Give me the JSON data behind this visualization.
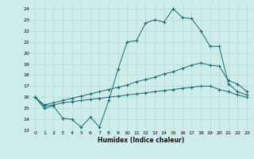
{
  "xlabel": "Humidex (Indice chaleur)",
  "bg_color": "#ceecea",
  "line_color": "#1a6b6b",
  "grid_color": "#b5d8d5",
  "xlim": [
    -0.5,
    23.5
  ],
  "ylim": [
    13,
    24.5
  ],
  "yticks": [
    13,
    14,
    15,
    16,
    17,
    18,
    19,
    20,
    21,
    22,
    23,
    24
  ],
  "xticks": [
    0,
    1,
    2,
    3,
    4,
    5,
    6,
    7,
    8,
    9,
    10,
    11,
    12,
    13,
    14,
    15,
    16,
    17,
    18,
    19,
    20,
    21,
    22,
    23
  ],
  "line1_x": [
    0,
    1,
    2,
    3,
    4,
    5,
    6,
    7,
    8,
    9,
    10,
    11,
    12,
    13,
    14,
    15,
    16,
    17,
    18,
    19,
    20,
    21,
    22,
    23
  ],
  "line1_y": [
    16.0,
    15.0,
    15.2,
    14.1,
    14.0,
    13.3,
    14.2,
    13.3,
    15.7,
    18.5,
    21.0,
    21.1,
    22.7,
    23.0,
    22.8,
    24.0,
    23.2,
    23.1,
    22.0,
    20.6,
    20.6,
    17.2,
    16.5,
    16.2
  ],
  "line2_x": [
    0,
    1,
    2,
    3,
    4,
    5,
    6,
    7,
    8,
    9,
    10,
    11,
    12,
    13,
    14,
    15,
    16,
    17,
    18,
    19,
    20,
    21,
    22,
    23
  ],
  "line2_y": [
    16.0,
    15.3,
    15.5,
    15.7,
    15.9,
    16.1,
    16.3,
    16.5,
    16.7,
    16.9,
    17.1,
    17.4,
    17.6,
    17.8,
    18.1,
    18.3,
    18.6,
    18.9,
    19.1,
    18.9,
    18.8,
    17.5,
    17.2,
    16.5
  ],
  "line3_x": [
    0,
    1,
    2,
    3,
    4,
    5,
    6,
    7,
    8,
    9,
    10,
    11,
    12,
    13,
    14,
    15,
    16,
    17,
    18,
    19,
    20,
    21,
    22,
    23
  ],
  "line3_y": [
    16.0,
    15.2,
    15.3,
    15.5,
    15.6,
    15.7,
    15.8,
    15.9,
    16.0,
    16.1,
    16.2,
    16.3,
    16.4,
    16.5,
    16.6,
    16.7,
    16.8,
    16.9,
    17.0,
    17.0,
    16.7,
    16.5,
    16.2,
    16.0
  ]
}
